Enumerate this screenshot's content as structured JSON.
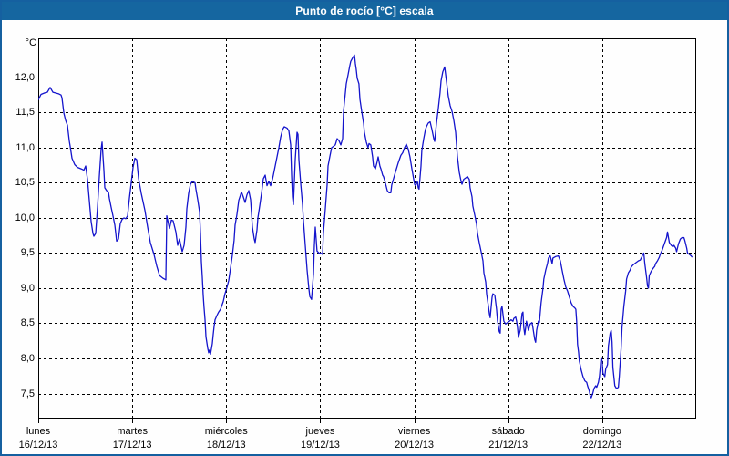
{
  "window": {
    "title": "Punto de rocío [°C] escala"
  },
  "colors": {
    "titlebar_bg": "#1566A0",
    "frame": "#1560A0",
    "background": "#FEFEFE",
    "line": "#1414CC",
    "grid": "#000000",
    "plot_border": "#000000",
    "label_text": "#000000"
  },
  "chart_data": {
    "type": "line",
    "title": "Punto de rocío [°C] escala",
    "series_name": "Punto de rocío",
    "unit_label": "°C",
    "ylabel": "°C",
    "xlabel": "",
    "grid": "dashed",
    "legend": "none",
    "ylim": [
      7.143,
      12.558
    ],
    "xlim_days": [
      0,
      7
    ],
    "y_tick_values": [
      12.0,
      11.5,
      11.0,
      10.5,
      10.0,
      9.5,
      9.0,
      8.5,
      8.0,
      7.5
    ],
    "y_tick_labels": [
      "12,0",
      "11,5",
      "11,0",
      "10,5",
      "10,0",
      "9,5",
      "9,0",
      "8,5",
      "8,0",
      "7,5"
    ],
    "x_days": [
      {
        "name": "lunes",
        "date": "16/12/13"
      },
      {
        "name": "martes",
        "date": "17/12/13"
      },
      {
        "name": "miércoles",
        "date": "18/12/13"
      },
      {
        "name": "jueves",
        "date": "19/12/13"
      },
      {
        "name": "viernes",
        "date": "20/12/13"
      },
      {
        "name": "sábado",
        "date": "21/12/13"
      },
      {
        "name": "domingo",
        "date": "22/12/13"
      }
    ],
    "points": [
      [
        0.0,
        11.68
      ],
      [
        0.029,
        11.76
      ],
      [
        0.068,
        11.78
      ],
      [
        0.097,
        11.79
      ],
      [
        0.126,
        11.86
      ],
      [
        0.155,
        11.79
      ],
      [
        0.213,
        11.77
      ],
      [
        0.242,
        11.75
      ],
      [
        0.252,
        11.71
      ],
      [
        0.272,
        11.49
      ],
      [
        0.291,
        11.39
      ],
      [
        0.31,
        11.32
      ],
      [
        0.33,
        11.1
      ],
      [
        0.339,
        11.02
      ],
      [
        0.359,
        10.85
      ],
      [
        0.388,
        10.76
      ],
      [
        0.417,
        10.72
      ],
      [
        0.456,
        10.7
      ],
      [
        0.485,
        10.68
      ],
      [
        0.504,
        10.74
      ],
      [
        0.524,
        10.55
      ],
      [
        0.543,
        10.25
      ],
      [
        0.562,
        9.95
      ],
      [
        0.582,
        9.78
      ],
      [
        0.591,
        9.74
      ],
      [
        0.611,
        9.78
      ],
      [
        0.63,
        10.15
      ],
      [
        0.65,
        10.59
      ],
      [
        0.669,
        10.98
      ],
      [
        0.679,
        11.08
      ],
      [
        0.698,
        10.68
      ],
      [
        0.708,
        10.43
      ],
      [
        0.727,
        10.39
      ],
      [
        0.747,
        10.37
      ],
      [
        0.756,
        10.28
      ],
      [
        0.776,
        10.15
      ],
      [
        0.795,
        10.03
      ],
      [
        0.814,
        9.9
      ],
      [
        0.834,
        9.67
      ],
      [
        0.853,
        9.7
      ],
      [
        0.873,
        9.92
      ],
      [
        0.892,
        9.98
      ],
      [
        0.911,
        10.0
      ],
      [
        0.931,
        9.99
      ],
      [
        0.95,
        10.03
      ],
      [
        0.97,
        10.28
      ],
      [
        0.989,
        10.5
      ],
      [
        1.008,
        10.72
      ],
      [
        1.028,
        10.85
      ],
      [
        1.047,
        10.83
      ],
      [
        1.067,
        10.56
      ],
      [
        1.096,
        10.35
      ],
      [
        1.134,
        10.11
      ],
      [
        1.163,
        9.87
      ],
      [
        1.193,
        9.65
      ],
      [
        1.231,
        9.48
      ],
      [
        1.261,
        9.31
      ],
      [
        1.29,
        9.18
      ],
      [
        1.328,
        9.14
      ],
      [
        1.357,
        9.12
      ],
      [
        1.367,
        10.03
      ],
      [
        1.396,
        9.85
      ],
      [
        1.416,
        9.97
      ],
      [
        1.435,
        9.96
      ],
      [
        1.464,
        9.8
      ],
      [
        1.483,
        9.61
      ],
      [
        1.503,
        9.7
      ],
      [
        1.532,
        9.52
      ],
      [
        1.551,
        9.61
      ],
      [
        1.571,
        9.87
      ],
      [
        1.58,
        10.13
      ],
      [
        1.6,
        10.35
      ],
      [
        1.619,
        10.48
      ],
      [
        1.639,
        10.52
      ],
      [
        1.668,
        10.5
      ],
      [
        1.677,
        10.41
      ],
      [
        1.697,
        10.26
      ],
      [
        1.716,
        10.09
      ],
      [
        1.726,
        9.78
      ],
      [
        1.735,
        9.38
      ],
      [
        1.745,
        9.16
      ],
      [
        1.755,
        8.9
      ],
      [
        1.764,
        8.73
      ],
      [
        1.774,
        8.55
      ],
      [
        1.784,
        8.31
      ],
      [
        1.803,
        8.14
      ],
      [
        1.813,
        8.08
      ],
      [
        1.822,
        8.12
      ],
      [
        1.832,
        8.06
      ],
      [
        1.852,
        8.21
      ],
      [
        1.861,
        8.33
      ],
      [
        1.871,
        8.46
      ],
      [
        1.881,
        8.55
      ],
      [
        1.9,
        8.61
      ],
      [
        1.919,
        8.66
      ],
      [
        1.939,
        8.7
      ],
      [
        1.968,
        8.81
      ],
      [
        1.987,
        8.92
      ],
      [
        2.007,
        9.01
      ],
      [
        2.026,
        9.11
      ],
      [
        2.036,
        9.2
      ],
      [
        2.046,
        9.29
      ],
      [
        2.065,
        9.47
      ],
      [
        2.084,
        9.68
      ],
      [
        2.094,
        9.9
      ],
      [
        2.113,
        10.04
      ],
      [
        2.133,
        10.25
      ],
      [
        2.162,
        10.37
      ],
      [
        2.181,
        10.3
      ],
      [
        2.201,
        10.22
      ],
      [
        2.22,
        10.33
      ],
      [
        2.24,
        10.39
      ],
      [
        2.259,
        10.26
      ],
      [
        2.278,
        9.87
      ],
      [
        2.298,
        9.7
      ],
      [
        2.307,
        9.65
      ],
      [
        2.327,
        9.83
      ],
      [
        2.337,
        10.0
      ],
      [
        2.356,
        10.17
      ],
      [
        2.375,
        10.35
      ],
      [
        2.395,
        10.56
      ],
      [
        2.414,
        10.61
      ],
      [
        2.434,
        10.46
      ],
      [
        2.453,
        10.52
      ],
      [
        2.472,
        10.46
      ],
      [
        2.492,
        10.55
      ],
      [
        2.501,
        10.61
      ],
      [
        2.521,
        10.74
      ],
      [
        2.54,
        10.87
      ],
      [
        2.56,
        11.0
      ],
      [
        2.579,
        11.15
      ],
      [
        2.599,
        11.26
      ],
      [
        2.618,
        11.3
      ],
      [
        2.647,
        11.28
      ],
      [
        2.666,
        11.24
      ],
      [
        2.686,
        11.04
      ],
      [
        2.695,
        10.61
      ],
      [
        2.705,
        10.3
      ],
      [
        2.715,
        10.19
      ],
      [
        2.734,
        10.83
      ],
      [
        2.753,
        11.22
      ],
      [
        2.763,
        11.19
      ],
      [
        2.773,
        10.83
      ],
      [
        2.792,
        10.49
      ],
      [
        2.812,
        10.19
      ],
      [
        2.821,
        9.96
      ],
      [
        2.841,
        9.61
      ],
      [
        2.86,
        9.26
      ],
      [
        2.879,
        9.0
      ],
      [
        2.889,
        8.88
      ],
      [
        2.908,
        8.84
      ],
      [
        2.928,
        9.2
      ],
      [
        2.938,
        9.61
      ],
      [
        2.947,
        9.87
      ],
      [
        2.966,
        9.53
      ],
      [
        2.986,
        9.5
      ],
      [
        3.005,
        9.5
      ],
      [
        3.025,
        9.48
      ],
      [
        3.034,
        9.78
      ],
      [
        3.054,
        10.13
      ],
      [
        3.073,
        10.47
      ],
      [
        3.083,
        10.74
      ],
      [
        3.102,
        10.87
      ],
      [
        3.121,
        11.0
      ],
      [
        3.141,
        11.02
      ],
      [
        3.16,
        11.04
      ],
      [
        3.18,
        11.13
      ],
      [
        3.199,
        11.1
      ],
      [
        3.219,
        11.04
      ],
      [
        3.238,
        11.13
      ],
      [
        3.248,
        11.52
      ],
      [
        3.267,
        11.78
      ],
      [
        3.277,
        11.91
      ],
      [
        3.296,
        12.04
      ],
      [
        3.315,
        12.17
      ],
      [
        3.325,
        12.23
      ],
      [
        3.345,
        12.28
      ],
      [
        3.364,
        12.32
      ],
      [
        3.374,
        12.2
      ],
      [
        3.383,
        12.12
      ],
      [
        3.393,
        11.99
      ],
      [
        3.412,
        11.91
      ],
      [
        3.422,
        11.69
      ],
      [
        3.441,
        11.52
      ],
      [
        3.461,
        11.35
      ],
      [
        3.47,
        11.22
      ],
      [
        3.49,
        11.08
      ],
      [
        3.509,
        11.0
      ],
      [
        3.519,
        11.06
      ],
      [
        3.538,
        11.04
      ],
      [
        3.557,
        10.87
      ],
      [
        3.567,
        10.74
      ],
      [
        3.587,
        10.7
      ],
      [
        3.606,
        10.8
      ],
      [
        3.616,
        10.87
      ],
      [
        3.635,
        10.74
      ],
      [
        3.645,
        10.7
      ],
      [
        3.664,
        10.61
      ],
      [
        3.674,
        10.59
      ],
      [
        3.693,
        10.5
      ],
      [
        3.713,
        10.39
      ],
      [
        3.732,
        10.36
      ],
      [
        3.751,
        10.36
      ],
      [
        3.761,
        10.47
      ],
      [
        3.8,
        10.65
      ],
      [
        3.829,
        10.78
      ],
      [
        3.858,
        10.89
      ],
      [
        3.878,
        10.93
      ],
      [
        3.897,
        11.0
      ],
      [
        3.916,
        11.05
      ],
      [
        3.936,
        10.98
      ],
      [
        3.955,
        10.87
      ],
      [
        3.975,
        10.7
      ],
      [
        3.994,
        10.55
      ],
      [
        4.004,
        10.48
      ],
      [
        4.014,
        10.46
      ],
      [
        4.033,
        10.52
      ],
      [
        4.043,
        10.43
      ],
      [
        4.052,
        10.41
      ],
      [
        4.072,
        10.74
      ],
      [
        4.081,
        10.96
      ],
      [
        4.101,
        11.13
      ],
      [
        4.12,
        11.26
      ],
      [
        4.13,
        11.3
      ],
      [
        4.149,
        11.35
      ],
      [
        4.169,
        11.37
      ],
      [
        4.188,
        11.26
      ],
      [
        4.208,
        11.13
      ],
      [
        4.217,
        11.09
      ],
      [
        4.237,
        11.35
      ],
      [
        4.256,
        11.56
      ],
      [
        4.275,
        11.78
      ],
      [
        4.285,
        11.95
      ],
      [
        4.304,
        12.08
      ],
      [
        4.324,
        12.15
      ],
      [
        4.343,
        11.95
      ],
      [
        4.363,
        11.73
      ],
      [
        4.382,
        11.6
      ],
      [
        4.402,
        11.52
      ],
      [
        4.421,
        11.39
      ],
      [
        4.44,
        11.22
      ],
      [
        4.45,
        11.04
      ],
      [
        4.46,
        10.87
      ],
      [
        4.479,
        10.65
      ],
      [
        4.499,
        10.52
      ],
      [
        4.508,
        10.48
      ],
      [
        4.527,
        10.55
      ],
      [
        4.547,
        10.57
      ],
      [
        4.566,
        10.59
      ],
      [
        4.586,
        10.55
      ],
      [
        4.595,
        10.43
      ],
      [
        4.615,
        10.3
      ],
      [
        4.624,
        10.17
      ],
      [
        4.644,
        10.04
      ],
      [
        4.663,
        9.91
      ],
      [
        4.673,
        9.78
      ],
      [
        4.692,
        9.65
      ],
      [
        4.712,
        9.52
      ],
      [
        4.731,
        9.39
      ],
      [
        4.741,
        9.22
      ],
      [
        4.76,
        9.09
      ],
      [
        4.77,
        8.92
      ],
      [
        4.789,
        8.74
      ],
      [
        4.799,
        8.64
      ],
      [
        4.808,
        8.58
      ],
      [
        4.828,
        8.87
      ],
      [
        4.837,
        8.92
      ],
      [
        4.857,
        8.9
      ],
      [
        4.876,
        8.7
      ],
      [
        4.886,
        8.53
      ],
      [
        4.905,
        8.38
      ],
      [
        4.915,
        8.36
      ],
      [
        4.924,
        8.7
      ],
      [
        4.934,
        8.74
      ],
      [
        4.953,
        8.53
      ],
      [
        4.973,
        8.49
      ],
      [
        4.992,
        8.51
      ],
      [
        5.012,
        8.53
      ],
      [
        5.031,
        8.55
      ],
      [
        5.05,
        8.53
      ],
      [
        5.06,
        8.57
      ],
      [
        5.079,
        8.59
      ],
      [
        5.089,
        8.53
      ],
      [
        5.099,
        8.44
      ],
      [
        5.108,
        8.3
      ],
      [
        5.128,
        8.4
      ],
      [
        5.147,
        8.64
      ],
      [
        5.157,
        8.66
      ],
      [
        5.166,
        8.44
      ],
      [
        5.176,
        8.34
      ],
      [
        5.195,
        8.53
      ],
      [
        5.215,
        8.4
      ],
      [
        5.234,
        8.49
      ],
      [
        5.253,
        8.51
      ],
      [
        5.263,
        8.44
      ],
      [
        5.282,
        8.27
      ],
      [
        5.292,
        8.23
      ],
      [
        5.302,
        8.4
      ],
      [
        5.321,
        8.53
      ],
      [
        5.331,
        8.51
      ],
      [
        5.35,
        8.79
      ],
      [
        5.37,
        9.0
      ],
      [
        5.379,
        9.13
      ],
      [
        5.399,
        9.26
      ],
      [
        5.418,
        9.35
      ],
      [
        5.428,
        9.43
      ],
      [
        5.447,
        9.46
      ],
      [
        5.467,
        9.35
      ],
      [
        5.476,
        9.43
      ],
      [
        5.505,
        9.45
      ],
      [
        5.534,
        9.46
      ],
      [
        5.554,
        9.39
      ],
      [
        5.573,
        9.26
      ],
      [
        5.592,
        9.13
      ],
      [
        5.612,
        9.02
      ],
      [
        5.631,
        8.96
      ],
      [
        5.651,
        8.87
      ],
      [
        5.67,
        8.79
      ],
      [
        5.69,
        8.74
      ],
      [
        5.709,
        8.72
      ],
      [
        5.719,
        8.7
      ],
      [
        5.728,
        8.53
      ],
      [
        5.738,
        8.2
      ],
      [
        5.748,
        8.09
      ],
      [
        5.757,
        7.96
      ],
      [
        5.777,
        7.83
      ],
      [
        5.796,
        7.74
      ],
      [
        5.815,
        7.68
      ],
      [
        5.835,
        7.66
      ],
      [
        5.844,
        7.61
      ],
      [
        5.864,
        7.53
      ],
      [
        5.873,
        7.46
      ],
      [
        5.883,
        7.44
      ],
      [
        5.902,
        7.51
      ],
      [
        5.912,
        7.57
      ],
      [
        5.931,
        7.61
      ],
      [
        5.941,
        7.59
      ],
      [
        5.96,
        7.66
      ],
      [
        5.97,
        7.74
      ],
      [
        5.979,
        7.87
      ],
      [
        5.989,
        8.02
      ],
      [
        5.999,
        7.96
      ],
      [
        6.008,
        7.79
      ],
      [
        6.028,
        7.74
      ],
      [
        6.037,
        7.85
      ],
      [
        6.057,
        7.91
      ],
      [
        6.066,
        8.18
      ],
      [
        6.085,
        8.36
      ],
      [
        6.095,
        8.4
      ],
      [
        6.105,
        8.23
      ],
      [
        6.114,
        7.87
      ],
      [
        6.134,
        7.61
      ],
      [
        6.153,
        7.57
      ],
      [
        6.172,
        7.59
      ],
      [
        6.182,
        7.74
      ],
      [
        6.201,
        8.14
      ],
      [
        6.211,
        8.44
      ],
      [
        6.23,
        8.74
      ],
      [
        6.25,
        8.96
      ],
      [
        6.259,
        9.13
      ],
      [
        6.279,
        9.22
      ],
      [
        6.298,
        9.26
      ],
      [
        6.308,
        9.3
      ],
      [
        6.327,
        9.33
      ],
      [
        6.347,
        9.35
      ],
      [
        6.366,
        9.37
      ],
      [
        6.385,
        9.39
      ],
      [
        6.405,
        9.4
      ],
      [
        6.424,
        9.45
      ],
      [
        6.434,
        9.49
      ],
      [
        6.443,
        9.5
      ],
      [
        6.453,
        9.35
      ],
      [
        6.472,
        9.16
      ],
      [
        6.482,
        9.03
      ],
      [
        6.492,
        9.0
      ],
      [
        6.501,
        9.18
      ],
      [
        6.521,
        9.24
      ],
      [
        6.54,
        9.28
      ],
      [
        6.559,
        9.31
      ],
      [
        6.569,
        9.35
      ],
      [
        6.588,
        9.39
      ],
      [
        6.607,
        9.44
      ],
      [
        6.617,
        9.48
      ],
      [
        6.637,
        9.54
      ],
      [
        6.656,
        9.61
      ],
      [
        6.666,
        9.65
      ],
      [
        6.685,
        9.72
      ],
      [
        6.695,
        9.8
      ],
      [
        6.714,
        9.65
      ],
      [
        6.734,
        9.61
      ],
      [
        6.753,
        9.59
      ],
      [
        6.763,
        9.61
      ],
      [
        6.782,
        9.57
      ],
      [
        6.792,
        9.52
      ],
      [
        6.811,
        9.63
      ],
      [
        6.831,
        9.7
      ],
      [
        6.85,
        9.72
      ],
      [
        6.869,
        9.72
      ],
      [
        6.879,
        9.68
      ],
      [
        6.899,
        9.57
      ],
      [
        6.908,
        9.5
      ],
      [
        6.927,
        9.48
      ],
      [
        6.947,
        9.46
      ],
      [
        6.957,
        9.44
      ]
    ]
  }
}
